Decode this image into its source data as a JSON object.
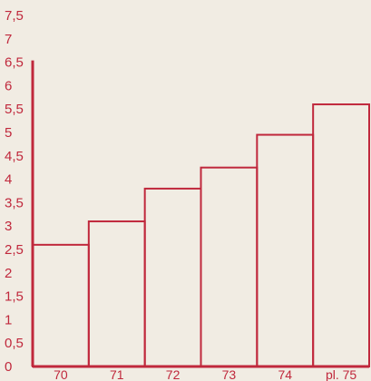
{
  "chart_data": {
    "type": "bar",
    "title": "",
    "xlabel": "",
    "ylabel": "",
    "categories": [
      "70",
      "71",
      "72",
      "73",
      "74",
      "pl. 75"
    ],
    "values": [
      2.6,
      3.1,
      3.8,
      4.25,
      4.95,
      5.6
    ],
    "ylim": [
      0,
      7.5
    ],
    "yticks": [
      "0",
      "0,5",
      "1",
      "1,5",
      "2",
      "2,5",
      "3",
      "3,5",
      "4",
      "4,5",
      "5",
      "5,5",
      "6",
      "6,5",
      "7",
      "7,5"
    ],
    "grid": false,
    "legend": "none",
    "colors": {
      "bar_outline": "#c0283c",
      "text": "#c0283c",
      "axis": "#c0283c",
      "background": "#f1ece3"
    }
  }
}
